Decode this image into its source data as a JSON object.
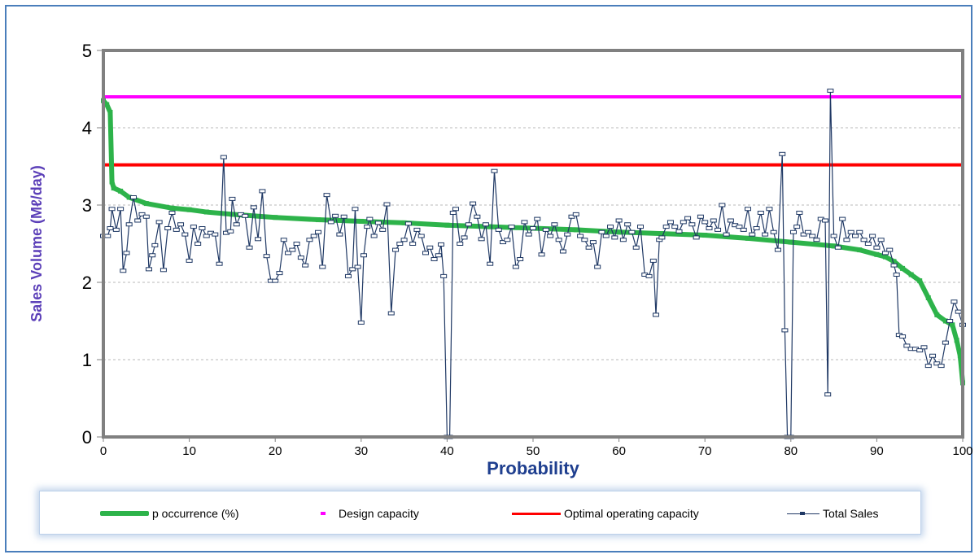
{
  "chart_data": {
    "type": "line",
    "title": "",
    "xlabel": "Probability",
    "ylabel": "Sales Volume (Mℓ/day)",
    "xlim": [
      0,
      100
    ],
    "ylim": [
      0,
      5
    ],
    "x_ticks": [
      "0",
      "10",
      "20",
      "30",
      "40",
      "50",
      "60",
      "70",
      "80",
      "90",
      "100"
    ],
    "y_ticks": [
      "0",
      "1",
      "2",
      "3",
      "4",
      "5"
    ],
    "grid": "horizontal dashed",
    "legend_position": "bottom",
    "series": [
      {
        "name": "p occurrence (%)",
        "color": "#2db34a",
        "style": "thick line with square markers",
        "points": [
          [
            0,
            4.35
          ],
          [
            0.4,
            4.3
          ],
          [
            0.8,
            4.2
          ],
          [
            1.0,
            3.3
          ],
          [
            1.2,
            3.22
          ],
          [
            2,
            3.18
          ],
          [
            3,
            3.1
          ],
          [
            5,
            3.02
          ],
          [
            8,
            2.96
          ],
          [
            10,
            2.94
          ],
          [
            12,
            2.91
          ],
          [
            15,
            2.88
          ],
          [
            20,
            2.84
          ],
          [
            25,
            2.81
          ],
          [
            30,
            2.79
          ],
          [
            35,
            2.77
          ],
          [
            40,
            2.74
          ],
          [
            45,
            2.72
          ],
          [
            50,
            2.7
          ],
          [
            55,
            2.68
          ],
          [
            60,
            2.65
          ],
          [
            65,
            2.63
          ],
          [
            70,
            2.61
          ],
          [
            75,
            2.57
          ],
          [
            80,
            2.52
          ],
          [
            85,
            2.47
          ],
          [
            88,
            2.42
          ],
          [
            90,
            2.36
          ],
          [
            91,
            2.33
          ],
          [
            92,
            2.27
          ],
          [
            93,
            2.18
          ],
          [
            94,
            2.1
          ],
          [
            95,
            2.02
          ],
          [
            96,
            1.8
          ],
          [
            97,
            1.58
          ],
          [
            98,
            1.5
          ],
          [
            98.8,
            1.45
          ],
          [
            99.3,
            1.25
          ],
          [
            99.7,
            1.05
          ],
          [
            100,
            0.7
          ]
        ]
      },
      {
        "name": "Design capacity",
        "color": "#ff00ff",
        "value": 4.4
      },
      {
        "name": "Optimal operating capacity",
        "color": "#ff0000",
        "value": 3.52
      },
      {
        "name": "Total Sales",
        "color": "#1f3864",
        "style": "thin line with square markers",
        "points": [
          [
            0,
            2.6
          ],
          [
            0.5,
            2.6
          ],
          [
            0.8,
            2.7
          ],
          [
            1,
            2.95
          ],
          [
            1.5,
            2.68
          ],
          [
            2,
            2.95
          ],
          [
            2.3,
            2.15
          ],
          [
            2.7,
            2.38
          ],
          [
            3,
            2.75
          ],
          [
            3.5,
            3.1
          ],
          [
            4,
            2.8
          ],
          [
            4.5,
            2.88
          ],
          [
            5,
            2.85
          ],
          [
            5.3,
            2.17
          ],
          [
            5.7,
            2.35
          ],
          [
            6,
            2.48
          ],
          [
            6.5,
            2.78
          ],
          [
            7,
            2.16
          ],
          [
            7.5,
            2.7
          ],
          [
            8,
            2.9
          ],
          [
            8.5,
            2.68
          ],
          [
            9,
            2.75
          ],
          [
            9.5,
            2.62
          ],
          [
            10,
            2.28
          ],
          [
            10.5,
            2.72
          ],
          [
            11,
            2.5
          ],
          [
            11.5,
            2.7
          ],
          [
            12,
            2.6
          ],
          [
            12.5,
            2.64
          ],
          [
            13,
            2.62
          ],
          [
            13.5,
            2.24
          ],
          [
            14,
            3.62
          ],
          [
            14.3,
            2.64
          ],
          [
            14.8,
            2.66
          ],
          [
            15,
            3.08
          ],
          [
            15.5,
            2.75
          ],
          [
            16,
            2.88
          ],
          [
            16.5,
            2.86
          ],
          [
            17,
            2.45
          ],
          [
            17.5,
            2.97
          ],
          [
            18,
            2.56
          ],
          [
            18.5,
            3.18
          ],
          [
            19,
            2.34
          ],
          [
            19.5,
            2.02
          ],
          [
            20,
            2.02
          ],
          [
            20.5,
            2.12
          ],
          [
            21,
            2.55
          ],
          [
            21.5,
            2.38
          ],
          [
            22,
            2.42
          ],
          [
            22.5,
            2.5
          ],
          [
            23,
            2.32
          ],
          [
            23.5,
            2.22
          ],
          [
            24,
            2.55
          ],
          [
            24.5,
            2.6
          ],
          [
            25,
            2.65
          ],
          [
            25.5,
            2.2
          ],
          [
            26,
            3.13
          ],
          [
            26.5,
            2.78
          ],
          [
            27,
            2.86
          ],
          [
            27.5,
            2.62
          ],
          [
            28,
            2.85
          ],
          [
            28.5,
            2.08
          ],
          [
            29,
            2.17
          ],
          [
            29.3,
            2.95
          ],
          [
            29.6,
            2.2
          ],
          [
            30,
            1.48
          ],
          [
            30.3,
            2.35
          ],
          [
            30.7,
            2.72
          ],
          [
            31,
            2.82
          ],
          [
            31.5,
            2.6
          ],
          [
            32,
            2.77
          ],
          [
            32.5,
            2.68
          ],
          [
            33,
            3.01
          ],
          [
            33.5,
            1.6
          ],
          [
            34,
            2.42
          ],
          [
            34.5,
            2.5
          ],
          [
            35,
            2.55
          ],
          [
            35.5,
            2.76
          ],
          [
            36,
            2.5
          ],
          [
            36.5,
            2.68
          ],
          [
            37,
            2.6
          ],
          [
            37.5,
            2.38
          ],
          [
            38,
            2.45
          ],
          [
            38.5,
            2.3
          ],
          [
            39,
            2.35
          ],
          [
            39.3,
            2.49
          ],
          [
            39.6,
            2.08
          ],
          [
            40,
            0
          ],
          [
            40.3,
            0
          ],
          [
            40.7,
            2.9
          ],
          [
            41,
            2.95
          ],
          [
            41.5,
            2.5
          ],
          [
            42,
            2.58
          ],
          [
            42.5,
            2.75
          ],
          [
            43,
            3.02
          ],
          [
            43.5,
            2.85
          ],
          [
            44,
            2.56
          ],
          [
            44.5,
            2.75
          ],
          [
            45,
            2.24
          ],
          [
            45.5,
            3.44
          ],
          [
            46,
            2.68
          ],
          [
            46.5,
            2.52
          ],
          [
            47,
            2.55
          ],
          [
            47.5,
            2.72
          ],
          [
            48,
            2.2
          ],
          [
            48.5,
            2.3
          ],
          [
            49,
            2.78
          ],
          [
            49.5,
            2.62
          ],
          [
            50,
            2.7
          ],
          [
            50.5,
            2.82
          ],
          [
            51,
            2.36
          ],
          [
            51.5,
            2.68
          ],
          [
            52,
            2.6
          ],
          [
            52.5,
            2.75
          ],
          [
            53,
            2.55
          ],
          [
            53.5,
            2.4
          ],
          [
            54,
            2.62
          ],
          [
            54.5,
            2.85
          ],
          [
            55,
            2.88
          ],
          [
            55.5,
            2.6
          ],
          [
            56,
            2.55
          ],
          [
            56.5,
            2.45
          ],
          [
            57,
            2.52
          ],
          [
            57.5,
            2.2
          ],
          [
            58,
            2.65
          ],
          [
            58.5,
            2.6
          ],
          [
            59,
            2.72
          ],
          [
            59.5,
            2.58
          ],
          [
            60,
            2.8
          ],
          [
            60.5,
            2.55
          ],
          [
            61,
            2.75
          ],
          [
            61.5,
            2.65
          ],
          [
            62,
            2.45
          ],
          [
            62.5,
            2.72
          ],
          [
            63,
            2.1
          ],
          [
            63.5,
            2.08
          ],
          [
            64,
            2.28
          ],
          [
            64.3,
            1.58
          ],
          [
            64.7,
            2.55
          ],
          [
            65,
            2.58
          ],
          [
            65.5,
            2.72
          ],
          [
            66,
            2.78
          ],
          [
            66.5,
            2.72
          ],
          [
            67,
            2.66
          ],
          [
            67.5,
            2.78
          ],
          [
            68,
            2.83
          ],
          [
            68.5,
            2.75
          ],
          [
            69,
            2.58
          ],
          [
            69.5,
            2.85
          ],
          [
            70,
            2.78
          ],
          [
            70.5,
            2.7
          ],
          [
            71,
            2.8
          ],
          [
            71.5,
            2.68
          ],
          [
            72,
            3.0
          ],
          [
            72.5,
            2.62
          ],
          [
            73,
            2.8
          ],
          [
            73.5,
            2.74
          ],
          [
            74,
            2.72
          ],
          [
            74.5,
            2.68
          ],
          [
            75,
            2.95
          ],
          [
            75.5,
            2.62
          ],
          [
            76,
            2.7
          ],
          [
            76.5,
            2.9
          ],
          [
            77,
            2.62
          ],
          [
            77.5,
            2.95
          ],
          [
            78,
            2.65
          ],
          [
            78.5,
            2.42
          ],
          [
            79,
            3.66
          ],
          [
            79.3,
            1.38
          ],
          [
            79.6,
            0
          ],
          [
            80,
            0
          ],
          [
            80.3,
            2.65
          ],
          [
            80.7,
            2.72
          ],
          [
            81,
            2.9
          ],
          [
            81.5,
            2.62
          ],
          [
            82,
            2.65
          ],
          [
            82.5,
            2.6
          ],
          [
            83,
            2.55
          ],
          [
            83.5,
            2.82
          ],
          [
            84,
            2.8
          ],
          [
            84.3,
            0.55
          ],
          [
            84.6,
            4.48
          ],
          [
            85,
            2.6
          ],
          [
            85.5,
            2.45
          ],
          [
            86,
            2.82
          ],
          [
            86.5,
            2.55
          ],
          [
            87,
            2.65
          ],
          [
            87.5,
            2.6
          ],
          [
            88,
            2.65
          ],
          [
            88.5,
            2.55
          ],
          [
            89,
            2.5
          ],
          [
            89.5,
            2.6
          ],
          [
            90,
            2.45
          ],
          [
            90.5,
            2.55
          ],
          [
            91,
            2.38
          ],
          [
            91.5,
            2.42
          ],
          [
            92,
            2.22
          ],
          [
            92.3,
            2.1
          ],
          [
            92.6,
            1.32
          ],
          [
            93,
            1.3
          ],
          [
            93.5,
            1.18
          ],
          [
            94,
            1.14
          ],
          [
            94.5,
            1.14
          ],
          [
            95,
            1.12
          ],
          [
            95.5,
            1.16
          ],
          [
            96,
            0.92
          ],
          [
            96.5,
            1.05
          ],
          [
            97,
            0.95
          ],
          [
            97.5,
            0.92
          ],
          [
            98,
            1.22
          ],
          [
            98.5,
            1.5
          ],
          [
            99,
            1.75
          ],
          [
            99.5,
            1.62
          ],
          [
            100,
            1.45
          ]
        ]
      }
    ]
  },
  "legend": {
    "items": [
      {
        "label": "p occurrence (%)"
      },
      {
        "label": "Design capacity"
      },
      {
        "label": "Optimal operating capacity"
      },
      {
        "label": "Total Sales"
      }
    ]
  }
}
